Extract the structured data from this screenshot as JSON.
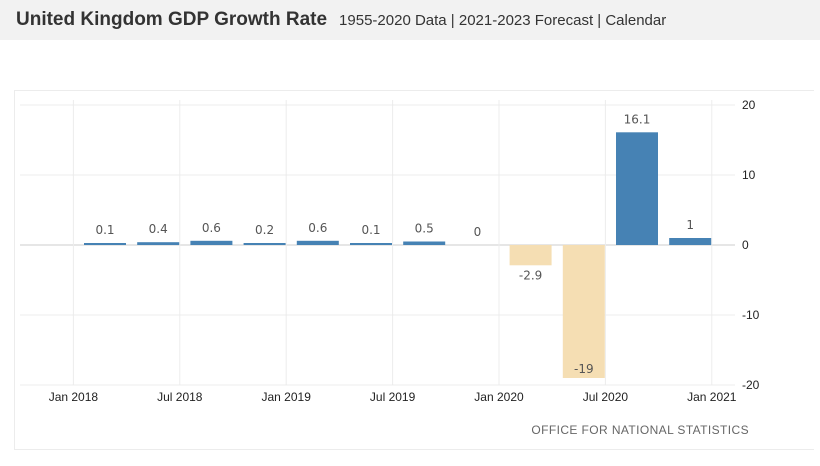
{
  "header": {
    "title": "United Kingdom GDP Growth Rate",
    "subtitle": "1955-2020 Data | 2021-2023 Forecast | Calendar"
  },
  "source": "OFFICE FOR NATIONAL STATISTICS",
  "colors": {
    "positive": "#4682b4",
    "negative": "#f5deb3",
    "grid": "#ececec",
    "zero_line": "#cccccc"
  },
  "chart_data": {
    "type": "bar",
    "categories": [
      "2018 Q1",
      "2018 Q2",
      "2018 Q3",
      "2018 Q4",
      "2019 Q1",
      "2019 Q2",
      "2019 Q3",
      "2019 Q4",
      "2020 Q1",
      "2020 Q2",
      "2020 Q3",
      "2020 Q4"
    ],
    "values": [
      0.1,
      0.4,
      0.6,
      0.2,
      0.6,
      0.1,
      0.5,
      0,
      -2.9,
      -19,
      16.1,
      1
    ],
    "labels": [
      "0.1",
      "0.4",
      "0.6",
      "0.2",
      "0.6",
      "0.1",
      "0.5",
      "0",
      "-2.9",
      "-19",
      "16.1",
      "1"
    ],
    "x_ticks": [
      "Jan 2018",
      "Jul 2018",
      "Jan 2019",
      "Jul 2019",
      "Jan 2020",
      "Jul 2020",
      "Jan 2021"
    ],
    "y_ticks": [
      20,
      10,
      0,
      -10,
      -20
    ],
    "ylim": [
      -20,
      20
    ],
    "grid": true,
    "y_axis_position": "right"
  }
}
